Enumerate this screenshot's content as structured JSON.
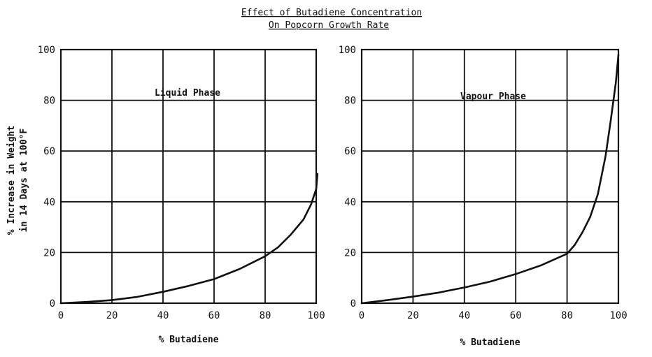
{
  "figure": {
    "title_line1": "Effect of Butadiene Concentration",
    "title_line2": "On Popcorn Growth Rate",
    "ylabel_line1": "% Increase in Weight",
    "ylabel_line2": "in 14 Days at 100°F"
  },
  "chart_data": [
    {
      "type": "line",
      "annotation": "Liquid Phase",
      "xlabel": "% Butadiene",
      "ylabel": "% Increase in Weight in 14 Days at 100°F",
      "xlim": [
        0,
        100
      ],
      "ylim": [
        0,
        100
      ],
      "x_ticks": [
        "0",
        "20",
        "40",
        "60",
        "80",
        "100"
      ],
      "y_ticks": [
        "0",
        "20",
        "40",
        "60",
        "80",
        "100"
      ],
      "grid": true,
      "series": [
        {
          "x": [
            0,
            10,
            20,
            30,
            40,
            50,
            60,
            70,
            80,
            85,
            90,
            95,
            98,
            100,
            100.5
          ],
          "y": [
            0,
            0.5,
            1.2,
            2.5,
            4.5,
            6.8,
            9.5,
            13.5,
            18.5,
            22,
            27,
            33,
            39,
            45,
            51
          ]
        }
      ]
    },
    {
      "type": "line",
      "annotation": "Vapour Phase",
      "xlabel": "% Butadiene",
      "ylabel": "",
      "xlim": [
        0,
        100
      ],
      "ylim": [
        0,
        100
      ],
      "x_ticks": [
        "0",
        "20",
        "40",
        "60",
        "80",
        "100"
      ],
      "y_ticks": [
        "0",
        "20",
        "40",
        "60",
        "80",
        "100"
      ],
      "grid": true,
      "series": [
        {
          "x": [
            0,
            10,
            20,
            30,
            40,
            50,
            60,
            70,
            80,
            83,
            86,
            89,
            92,
            95,
            97,
            99,
            100
          ],
          "y": [
            0,
            1.2,
            2.6,
            4.2,
            6.2,
            8.5,
            11.5,
            15,
            19.5,
            23,
            28,
            34,
            43,
            58,
            72,
            87,
            98
          ]
        }
      ]
    }
  ]
}
